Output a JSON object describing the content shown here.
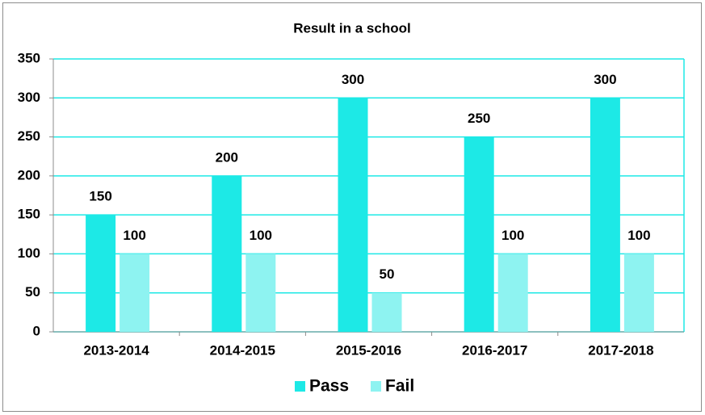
{
  "chart_data": {
    "type": "bar",
    "title": "Result in a school",
    "categories": [
      "2013-2014",
      "2014-2015",
      "2015-2016",
      "2016-2017",
      "2017-2018"
    ],
    "series": [
      {
        "name": "Pass",
        "color": "#1de9e6",
        "values": [
          150,
          200,
          300,
          250,
          300
        ]
      },
      {
        "name": "Fail",
        "color": "#8ef3f1",
        "values": [
          100,
          100,
          50,
          100,
          100
        ]
      }
    ],
    "ylim": [
      0,
      350
    ],
    "yticks": [
      0,
      50,
      100,
      150,
      200,
      250,
      300,
      350
    ],
    "grid": true,
    "legend": "bottom"
  }
}
